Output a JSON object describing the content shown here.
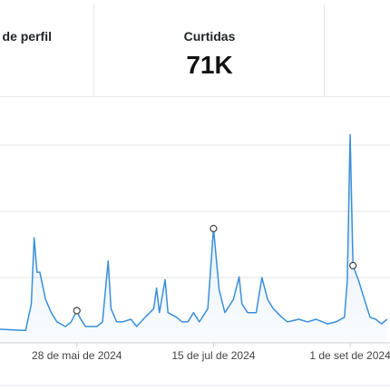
{
  "stats": [
    {
      "label": "de perfil"
    },
    {
      "label": "Curtidas",
      "value": "71K"
    }
  ],
  "chart_data": {
    "type": "line",
    "x": [
      "2024-05-01",
      "2024-05-10",
      "2024-05-12",
      "2024-05-13",
      "2024-05-14",
      "2024-05-15",
      "2024-05-17",
      "2024-05-19",
      "2024-05-21",
      "2024-05-24",
      "2024-05-26",
      "2024-05-28",
      "2024-05-29",
      "2024-05-31",
      "2024-06-04",
      "2024-06-06",
      "2024-06-08",
      "2024-06-09",
      "2024-06-11",
      "2024-06-13",
      "2024-06-16",
      "2024-06-18",
      "2024-06-21",
      "2024-06-24",
      "2024-06-25",
      "2024-06-26",
      "2024-06-28",
      "2024-06-29",
      "2024-07-02",
      "2024-07-04",
      "2024-07-06",
      "2024-07-08",
      "2024-07-10",
      "2024-07-13",
      "2024-07-15",
      "2024-07-17",
      "2024-07-19",
      "2024-07-22",
      "2024-07-24",
      "2024-07-25",
      "2024-07-27",
      "2024-07-30",
      "2024-08-01",
      "2024-08-03",
      "2024-08-05",
      "2024-08-08",
      "2024-08-10",
      "2024-08-14",
      "2024-08-17",
      "2024-08-20",
      "2024-08-24",
      "2024-08-27",
      "2024-08-30",
      "2024-08-31",
      "2024-09-01",
      "2024-09-02",
      "2024-09-04",
      "2024-09-06",
      "2024-09-08",
      "2024-09-10",
      "2024-09-12",
      "2024-09-14"
    ],
    "series": [
      {
        "color": "#3b8fd9",
        "values": [
          0.22,
          0.2,
          0.6,
          1.6,
          1.08,
          1.08,
          0.67,
          0.47,
          0.33,
          0.26,
          0.33,
          0.5,
          0.4,
          0.26,
          0.26,
          0.33,
          1.25,
          0.53,
          0.33,
          0.33,
          0.37,
          0.26,
          0.4,
          0.53,
          0.84,
          0.47,
          0.97,
          0.47,
          0.4,
          0.33,
          0.33,
          0.47,
          0.33,
          0.53,
          1.74,
          0.81,
          0.47,
          0.67,
          1.01,
          0.6,
          0.47,
          0.47,
          1.0,
          0.67,
          0.53,
          0.4,
          0.33,
          0.37,
          0.33,
          0.37,
          0.3,
          0.33,
          0.4,
          0.95,
          3.16,
          1.18,
          0.95,
          0.67,
          0.4,
          0.37,
          0.3,
          0.37
        ]
      }
    ],
    "highlight_indices": [
      11,
      34,
      55
    ],
    "xlim": [
      "2024-05-01",
      "2024-09-15"
    ],
    "xticks": [
      {
        "value": "2024-05-28",
        "label": "28 de mai de 2024"
      },
      {
        "value": "2024-07-15",
        "label": "15 de jul de 2024"
      },
      {
        "value": "2024-09-01",
        "label": "1 de set de 2024"
      }
    ],
    "ylim": [
      0,
      3.2
    ],
    "yticks": [
      1,
      2,
      3
    ],
    "grid": true
  }
}
